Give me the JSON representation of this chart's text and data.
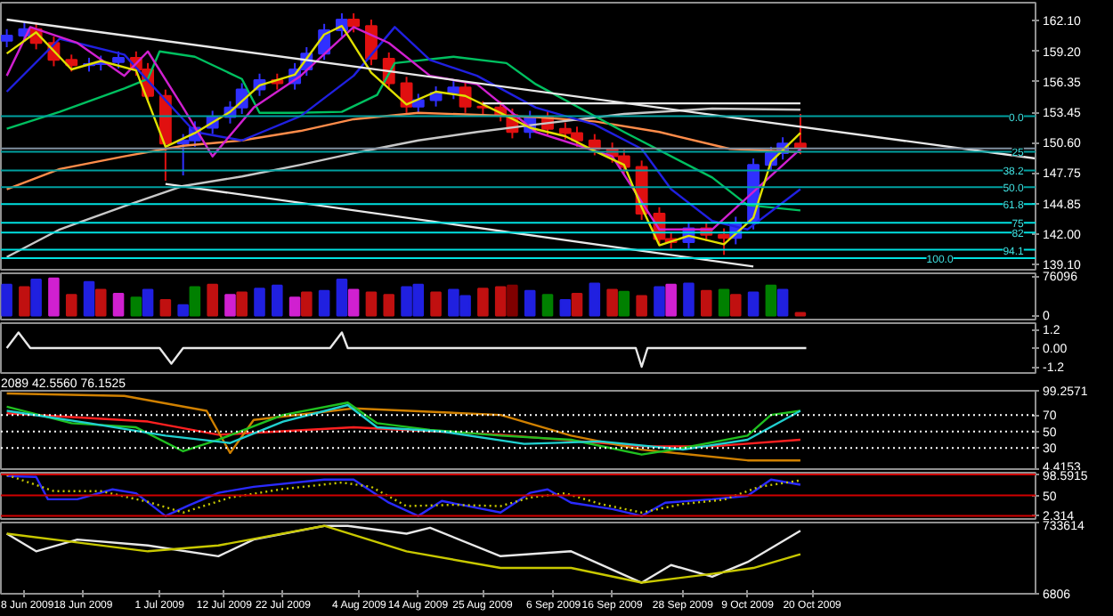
{
  "chart_data": [
    {
      "type": "candlestick",
      "tick_labels": "y",
      "xlim": [
        "2009-06-04",
        "2009-11-27"
      ],
      "ylim": [
        138.6,
        163.8
      ],
      "yticks": [
        {
          "value": 162.1,
          "label": "162.10"
        },
        {
          "value": 159.2,
          "label": "159.20"
        },
        {
          "value": 156.35,
          "label": "156.35"
        },
        {
          "value": 153.45,
          "label": "153.45"
        },
        {
          "value": 150.6,
          "label": "150.60"
        },
        {
          "value": 147.75,
          "label": "147.75"
        },
        {
          "value": 144.85,
          "label": "144.85"
        },
        {
          "value": 142.0,
          "label": "142.00"
        },
        {
          "value": 139.1,
          "label": "139.10"
        }
      ],
      "x": [
        "2009-06-05",
        "2009-06-08",
        "2009-06-10",
        "2009-06-13",
        "2009-06-16",
        "2009-06-19",
        "2009-06-21",
        "2009-06-24",
        "2009-06-27",
        "2009-06-29",
        "2009-07-02",
        "2009-07-05",
        "2009-07-07",
        "2009-07-10",
        "2009-07-13",
        "2009-07-15",
        "2009-07-18",
        "2009-07-21",
        "2009-07-24",
        "2009-07-26",
        "2009-07-29",
        "2009-08-01",
        "2009-08-03",
        "2009-08-06",
        "2009-08-09",
        "2009-08-12",
        "2009-08-14",
        "2009-08-17",
        "2009-08-20",
        "2009-08-22",
        "2009-08-25",
        "2009-08-28",
        "2009-08-30",
        "2009-09-02",
        "2009-09-05",
        "2009-09-08",
        "2009-09-10",
        "2009-09-13",
        "2009-09-16",
        "2009-09-18",
        "2009-09-21",
        "2009-09-24",
        "2009-09-26",
        "2009-09-29",
        "2009-10-02",
        "2009-10-05",
        "2009-10-07",
        "2009-10-10",
        "2009-10-13",
        "2009-10-15",
        "2009-10-18"
      ],
      "ohlc": [
        [
          160.2,
          161.3,
          159.6,
          160.7
        ],
        [
          160.7,
          162.0,
          160.1,
          161.3
        ],
        [
          161.3,
          161.9,
          159.4,
          160.0
        ],
        [
          160.0,
          160.6,
          157.8,
          158.4
        ],
        [
          158.4,
          158.9,
          157.3,
          157.9
        ],
        [
          157.9,
          158.6,
          157.3,
          158.0
        ],
        [
          158.0,
          158.8,
          157.4,
          158.2
        ],
        [
          158.2,
          159.2,
          157.6,
          158.6
        ],
        [
          158.6,
          159.2,
          156.9,
          157.5
        ],
        [
          157.5,
          158.1,
          154.4,
          155.0
        ],
        [
          155.0,
          155.6,
          147.0,
          150.5
        ],
        [
          150.5,
          151.4,
          147.5,
          150.8
        ],
        [
          150.8,
          152.6,
          150.2,
          152.0
        ],
        [
          152.0,
          153.6,
          151.4,
          153.0
        ],
        [
          153.0,
          154.5,
          152.4,
          153.9
        ],
        [
          153.9,
          156.2,
          153.3,
          155.6
        ],
        [
          155.6,
          157.1,
          155.0,
          156.5
        ],
        [
          156.5,
          157.1,
          155.6,
          156.2
        ],
        [
          156.2,
          158.1,
          155.6,
          157.5
        ],
        [
          157.5,
          159.6,
          156.9,
          159.0
        ],
        [
          159.0,
          161.8,
          158.4,
          161.2
        ],
        [
          161.2,
          162.8,
          160.6,
          162.2
        ],
        [
          162.2,
          162.8,
          161.0,
          161.6
        ],
        [
          161.6,
          162.2,
          157.9,
          158.5
        ],
        [
          158.5,
          159.1,
          155.6,
          156.2
        ],
        [
          156.2,
          156.8,
          153.4,
          154.0
        ],
        [
          154.0,
          155.2,
          153.4,
          154.6
        ],
        [
          154.6,
          155.9,
          154.0,
          155.3
        ],
        [
          155.3,
          156.4,
          154.7,
          155.8
        ],
        [
          155.8,
          156.4,
          153.4,
          154.0
        ],
        [
          154.0,
          154.5,
          153.3,
          153.9
        ],
        [
          153.9,
          154.5,
          152.6,
          153.2
        ],
        [
          153.2,
          153.8,
          151.0,
          151.6
        ],
        [
          151.6,
          153.6,
          151.0,
          153.0
        ],
        [
          153.0,
          153.6,
          151.3,
          151.9
        ],
        [
          151.9,
          152.5,
          150.9,
          151.5
        ],
        [
          151.5,
          152.1,
          150.2,
          150.8
        ],
        [
          150.8,
          151.4,
          149.4,
          150.0
        ],
        [
          150.0,
          150.6,
          148.7,
          149.3
        ],
        [
          149.3,
          149.9,
          147.7,
          148.3
        ],
        [
          148.3,
          148.9,
          143.3,
          143.9
        ],
        [
          143.9,
          144.5,
          140.9,
          141.5
        ],
        [
          141.5,
          142.1,
          140.6,
          141.2
        ],
        [
          141.2,
          143.1,
          140.6,
          142.5
        ],
        [
          142.5,
          143.1,
          141.3,
          141.9
        ],
        [
          141.9,
          142.5,
          140.0,
          141.6
        ],
        [
          141.6,
          143.6,
          141.0,
          143.0
        ],
        [
          143.0,
          149.1,
          142.4,
          148.5
        ],
        [
          148.5,
          150.2,
          147.9,
          149.6
        ],
        [
          149.6,
          151.1,
          149.0,
          150.5
        ],
        [
          150.5,
          153.3,
          149.5,
          150.1
        ]
      ],
      "series": [
        {
          "type": "line",
          "color": "#ff8c4a",
          "x": [
            "2009-06-05",
            "2009-06-14",
            "2009-06-25",
            "2009-07-05",
            "2009-07-15",
            "2009-07-25",
            "2009-08-03",
            "2009-08-14",
            "2009-08-25",
            "2009-09-03",
            "2009-09-13",
            "2009-09-24",
            "2009-10-06",
            "2009-10-18"
          ],
          "values": [
            146.2,
            148.1,
            149.3,
            150.3,
            150.8,
            151.7,
            152.8,
            153.4,
            153.2,
            153.0,
            152.6,
            151.6,
            150.0,
            149.7
          ]
        },
        {
          "type": "line",
          "color": "#c8c8c8",
          "x": [
            "2009-06-05",
            "2009-06-14",
            "2009-06-25",
            "2009-07-05",
            "2009-07-15",
            "2009-07-25",
            "2009-08-03",
            "2009-08-14",
            "2009-08-24",
            "2009-09-03",
            "2009-09-18",
            "2009-10-03",
            "2009-10-18"
          ],
          "values": [
            139.8,
            142.4,
            144.6,
            146.5,
            147.4,
            148.5,
            149.6,
            150.8,
            151.6,
            152.3,
            153.3,
            153.8,
            153.7
          ]
        },
        {
          "type": "line",
          "color": "#00c060",
          "x": [
            "2009-06-05",
            "2009-06-14",
            "2009-06-25",
            "2009-06-29",
            "2009-07-01",
            "2009-07-07",
            "2009-07-15",
            "2009-07-18",
            "2009-07-24",
            "2009-08-01",
            "2009-08-07",
            "2009-08-10",
            "2009-08-20",
            "2009-08-29",
            "2009-09-03",
            "2009-09-18",
            "2009-10-03",
            "2009-10-09",
            "2009-10-18"
          ],
          "values": [
            151.9,
            153.5,
            155.7,
            156.6,
            159.2,
            158.7,
            156.6,
            153.4,
            153.4,
            153.5,
            155.1,
            158.1,
            158.7,
            158.1,
            156.1,
            151.6,
            147.3,
            144.7,
            144.2
          ]
        },
        {
          "type": "line",
          "color": "#2020e0",
          "x": [
            "2009-06-05",
            "2009-06-14",
            "2009-06-25",
            "2009-07-02",
            "2009-07-07",
            "2009-07-15",
            "2009-07-25",
            "2009-08-03",
            "2009-08-10",
            "2009-08-16",
            "2009-08-24",
            "2009-09-03",
            "2009-09-13",
            "2009-09-21",
            "2009-09-26",
            "2009-10-03",
            "2009-10-09",
            "2009-10-18"
          ],
          "values": [
            155.4,
            160.4,
            158.9,
            154.6,
            151.6,
            150.8,
            153.1,
            156.9,
            161.5,
            158.4,
            156.9,
            153.9,
            152.3,
            150.0,
            146.2,
            143.2,
            142.4,
            146.2
          ]
        },
        {
          "type": "line",
          "color": "#d020d0",
          "x": [
            "2009-06-05",
            "2009-06-09",
            "2009-06-17",
            "2009-06-25",
            "2009-06-29",
            "2009-07-05",
            "2009-07-10",
            "2009-07-17",
            "2009-07-25",
            "2009-08-03",
            "2009-08-09",
            "2009-08-16",
            "2009-08-24",
            "2009-09-03",
            "2009-09-16",
            "2009-09-24",
            "2009-10-03",
            "2009-10-18"
          ],
          "values": [
            156.9,
            161.5,
            160.0,
            156.9,
            159.2,
            153.9,
            149.3,
            153.9,
            156.9,
            161.5,
            160.0,
            156.9,
            156.1,
            151.6,
            149.3,
            142.4,
            142.4,
            150.0
          ]
        },
        {
          "type": "line",
          "color": "#e0e000",
          "x": [
            "2009-06-05",
            "2009-06-10",
            "2009-06-16",
            "2009-06-21",
            "2009-06-27",
            "2009-07-02",
            "2009-07-07",
            "2009-07-13",
            "2009-07-18",
            "2009-07-24",
            "2009-07-29",
            "2009-08-01",
            "2009-08-06",
            "2009-08-12",
            "2009-08-17",
            "2009-08-22",
            "2009-08-28",
            "2009-09-02",
            "2009-09-08",
            "2009-09-13",
            "2009-09-18",
            "2009-09-21",
            "2009-09-24",
            "2009-09-29",
            "2009-10-05",
            "2009-10-10",
            "2009-10-13",
            "2009-10-18"
          ],
          "values": [
            159.0,
            161.0,
            157.5,
            158.3,
            157.4,
            150.2,
            151.5,
            153.5,
            156.0,
            157.0,
            160.8,
            161.6,
            157.2,
            154.2,
            155.4,
            155.0,
            153.4,
            152.0,
            151.2,
            149.8,
            148.5,
            144.5,
            140.9,
            141.8,
            141.0,
            143.5,
            148.8,
            151.5
          ]
        },
        {
          "type": "line",
          "color": "#e8e8e8",
          "x": [
            "2009-06-05",
            "2009-11-27"
          ],
          "values": [
            162.2,
            149.1
          ]
        },
        {
          "type": "line",
          "color": "#e8e8e8",
          "x": [
            "2009-07-02",
            "2009-10-10"
          ],
          "values": [
            146.7,
            138.9
          ]
        },
        {
          "type": "line",
          "color": "#e8e8e8",
          "x": [
            "2009-08-25",
            "2009-10-18"
          ],
          "values": [
            154.3,
            154.3
          ]
        }
      ],
      "ref_lines": [
        {
          "axis": "y",
          "value": 150.04,
          "label": null,
          "color": "#8090a0"
        },
        {
          "axis": "y",
          "value": 153.09,
          "label": null,
          "color": "#00a0a0"
        },
        {
          "axis": "y",
          "value": 149.74,
          "label": null,
          "color": "#00a0a0"
        },
        {
          "axis": "y",
          "value": 147.97,
          "label": null,
          "color": "#00a0a0"
        },
        {
          "axis": "y",
          "value": 146.4,
          "label": null,
          "color": "#00a0a0"
        },
        {
          "axis": "y",
          "value": 144.8,
          "label": null,
          "color": "#00e0e0"
        },
        {
          "axis": "y",
          "value": 143.04,
          "label": null,
          "color": "#00e0e0"
        },
        {
          "axis": "y",
          "value": 142.1,
          "label": null,
          "color": "#00e0e0"
        },
        {
          "axis": "y",
          "value": 140.48,
          "label": null,
          "color": "#00e0e0"
        },
        {
          "axis": "y",
          "value": 139.7,
          "label": null,
          "color": "#00e0e0"
        }
      ],
      "annotations": [
        {
          "text": "0.0",
          "x": "2009-11-25",
          "y": 153.09
        },
        {
          "text": "25",
          "x": "2009-11-25",
          "y": 149.74
        },
        {
          "text": "38.2",
          "x": "2009-11-25",
          "y": 147.97
        },
        {
          "text": "50.0",
          "x": "2009-11-25",
          "y": 146.4
        },
        {
          "text": "61.8",
          "x": "2009-11-25",
          "y": 144.8
        },
        {
          "text": "75",
          "x": "2009-11-25",
          "y": 143.04
        },
        {
          "text": "82",
          "x": "2009-11-25",
          "y": 142.1
        },
        {
          "text": "94.1",
          "x": "2009-11-25",
          "y": 140.48
        },
        {
          "text": "100.0",
          "x": "2009-11-13",
          "y": 139.7
        }
      ]
    },
    {
      "type": "bar",
      "tick_labels": "y",
      "xlim": [
        "2009-06-04",
        "2009-11-27"
      ],
      "ylim": [
        -8000,
        82000
      ],
      "yticks": [
        76096,
        0
      ],
      "x": [
        "2009-06-05",
        "2009-06-08",
        "2009-06-10",
        "2009-06-13",
        "2009-06-16",
        "2009-06-19",
        "2009-06-21",
        "2009-06-24",
        "2009-06-27",
        "2009-06-29",
        "2009-07-02",
        "2009-07-05",
        "2009-07-07",
        "2009-07-10",
        "2009-07-13",
        "2009-07-15",
        "2009-07-18",
        "2009-07-21",
        "2009-07-24",
        "2009-07-26",
        "2009-07-29",
        "2009-08-01",
        "2009-08-03",
        "2009-08-06",
        "2009-08-09",
        "2009-08-12",
        "2009-08-14",
        "2009-08-17",
        "2009-08-20",
        "2009-08-22",
        "2009-08-25",
        "2009-08-28",
        "2009-08-30",
        "2009-09-02",
        "2009-09-05",
        "2009-09-08",
        "2009-09-10",
        "2009-09-13",
        "2009-09-16",
        "2009-09-18",
        "2009-09-21",
        "2009-09-24",
        "2009-09-26",
        "2009-09-29",
        "2009-10-02",
        "2009-10-05",
        "2009-10-07",
        "2009-10-10",
        "2009-10-13",
        "2009-10-15",
        "2009-10-18"
      ],
      "values": [
        60000,
        55000,
        70000,
        72000,
        40000,
        65000,
        50000,
        42000,
        35000,
        50000,
        30000,
        20000,
        55000,
        60000,
        40000,
        45000,
        52000,
        58000,
        35000,
        45000,
        48000,
        70000,
        50000,
        45000,
        40000,
        55000,
        60000,
        45000,
        50000,
        38000,
        52000,
        55000,
        58000,
        48000,
        40000,
        30000,
        42000,
        62000,
        50000,
        46000,
        38000,
        55000,
        60000,
        62000,
        48000,
        50000,
        40000,
        45000,
        58000,
        50000,
        5000
      ],
      "colors": [
        "#2020e0",
        "#c01010",
        "#2020e0",
        "#d020d0",
        "#c01010",
        "#2020e0",
        "#c01010",
        "#d020d0",
        "#008000",
        "#2020e0",
        "#c01010",
        "#2020e0",
        "#008000",
        "#c01010",
        "#d020d0",
        "#c01010",
        "#2020e0",
        "#2020e0",
        "#d020d0",
        "#c01010",
        "#2020e0",
        "#2020e0",
        "#d020d0",
        "#c01010",
        "#c01010",
        "#2020e0",
        "#2020e0",
        "#c01010",
        "#2020e0",
        "#2020e0",
        "#c01010",
        "#c01010",
        "#800000",
        "#2020e0",
        "#008000",
        "#2020e0",
        "#c01010",
        "#2020e0",
        "#c01010",
        "#008000",
        "#c01010",
        "#2020e0",
        "#d020d0",
        "#2020e0",
        "#c01010",
        "#008000",
        "#c01010",
        "#2020e0",
        "#008000",
        "#2020e0",
        "#c01010"
      ]
    },
    {
      "type": "line",
      "tick_labels": "y",
      "xlim": [
        "2009-06-04",
        "2009-11-27"
      ],
      "ylim": [
        -1.6,
        1.6
      ],
      "yticks": [
        1.2,
        {
          "value": 0,
          "label": "0.00"
        },
        -1.2
      ],
      "series": [
        {
          "color": "#e8e8e8",
          "x": [
            "2009-06-05",
            "2009-06-07",
            "2009-06-09",
            "2009-07-01",
            "2009-07-03",
            "2009-07-05",
            "2009-07-30",
            "2009-08-01",
            "2009-08-02",
            "2009-09-20",
            "2009-09-21",
            "2009-09-22",
            "2009-10-19"
          ],
          "values": [
            0,
            1.0,
            0,
            0,
            -1.0,
            0,
            0,
            1.0,
            0,
            0,
            -1.2,
            0,
            0
          ]
        }
      ]
    },
    {
      "type": "line",
      "title": "2089 42.5560 76.1525",
      "tick_labels": "y",
      "xlim": [
        "2009-06-04",
        "2009-11-27"
      ],
      "ylim": [
        4.4153,
        99.2571
      ],
      "yticks": [
        99.2571,
        70,
        50,
        30,
        4.4153
      ],
      "ref_lines": [
        {
          "axis": "y",
          "value": 70,
          "label": null,
          "color": "#ffffff",
          "line_style": "dotted"
        },
        {
          "axis": "y",
          "value": 50,
          "label": null,
          "color": "#ffffff",
          "line_style": "dotted"
        },
        {
          "axis": "y",
          "value": 30,
          "label": null,
          "color": "#ffffff",
          "line_style": "dotted"
        }
      ],
      "series": [
        {
          "color": "#ff2020",
          "x": [
            "2009-06-05",
            "2009-06-29",
            "2009-07-11",
            "2009-08-03",
            "2009-08-28",
            "2009-09-21",
            "2009-10-03",
            "2009-10-18"
          ],
          "values": [
            72,
            62,
            46,
            55,
            46,
            32,
            32,
            40
          ]
        },
        {
          "color": "#d08000",
          "x": [
            "2009-06-05",
            "2009-06-25",
            "2009-07-09",
            "2009-07-13",
            "2009-07-17",
            "2009-08-03",
            "2009-08-28",
            "2009-09-09",
            "2009-09-21",
            "2009-10-09",
            "2009-10-18"
          ],
          "values": [
            96,
            93,
            75,
            24,
            64,
            78,
            70,
            45,
            28,
            15,
            15
          ]
        },
        {
          "color": "#20c020",
          "x": [
            "2009-06-05",
            "2009-06-16",
            "2009-06-27",
            "2009-07-05",
            "2009-07-11",
            "2009-07-22",
            "2009-08-02",
            "2009-08-07",
            "2009-08-16",
            "2009-08-28",
            "2009-09-09",
            "2009-09-21",
            "2009-09-28",
            "2009-10-09",
            "2009-10-13",
            "2009-10-18"
          ],
          "values": [
            80,
            60,
            55,
            26,
            40,
            70,
            85,
            60,
            52,
            45,
            40,
            22,
            30,
            45,
            70,
            75
          ]
        },
        {
          "color": "#20d0d0",
          "x": [
            "2009-06-05",
            "2009-06-19",
            "2009-07-02",
            "2009-07-13",
            "2009-07-22",
            "2009-08-02",
            "2009-08-07",
            "2009-08-18",
            "2009-09-01",
            "2009-09-14",
            "2009-09-28",
            "2009-10-09",
            "2009-10-18"
          ],
          "values": [
            75,
            60,
            45,
            36,
            62,
            82,
            55,
            50,
            35,
            38,
            28,
            40,
            75
          ]
        }
      ]
    },
    {
      "type": "line",
      "tick_labels": "y",
      "xlim": [
        "2009-06-04",
        "2009-11-27"
      ],
      "ylim": [
        -5,
        103
      ],
      "yticks": [
        98.5915,
        50,
        2.314
      ],
      "ref_lines": [
        {
          "axis": "y",
          "value": 98.5915,
          "label": null,
          "color": "#d00000"
        },
        {
          "axis": "y",
          "value": 50,
          "label": null,
          "color": "#d00000"
        },
        {
          "axis": "y",
          "value": 2.314,
          "label": null,
          "color": "#d00000"
        }
      ],
      "series": [
        {
          "color": "#2a2aff",
          "x": [
            "2009-06-05",
            "2009-06-10",
            "2009-06-12",
            "2009-06-17",
            "2009-06-23",
            "2009-06-27",
            "2009-07-02",
            "2009-07-06",
            "2009-07-11",
            "2009-07-17",
            "2009-07-29",
            "2009-08-03",
            "2009-08-09",
            "2009-08-14",
            "2009-08-18",
            "2009-08-28",
            "2009-09-02",
            "2009-09-05",
            "2009-09-09",
            "2009-09-16",
            "2009-09-21",
            "2009-09-25",
            "2009-10-03",
            "2009-10-09",
            "2009-10-13",
            "2009-10-18"
          ],
          "values": [
            95,
            93,
            41,
            41,
            64,
            55,
            2,
            27,
            56,
            70,
            87,
            87,
            33,
            2,
            37,
            10,
            56,
            64,
            33,
            18,
            2,
            33,
            41,
            49,
            87,
            75
          ]
        },
        {
          "color": "#c8c800",
          "line_style": "dotted",
          "x": [
            "2009-06-05",
            "2009-06-13",
            "2009-06-21",
            "2009-06-29",
            "2009-07-05",
            "2009-07-13",
            "2009-07-22",
            "2009-08-01",
            "2009-08-06",
            "2009-08-12",
            "2009-08-20",
            "2009-08-28",
            "2009-09-02",
            "2009-09-08",
            "2009-09-14",
            "2009-09-21",
            "2009-09-28",
            "2009-10-05",
            "2009-10-11",
            "2009-10-18"
          ],
          "values": [
            98,
            60,
            60,
            35,
            10,
            45,
            65,
            80,
            70,
            25,
            28,
            25,
            45,
            55,
            30,
            10,
            30,
            40,
            70,
            85
          ]
        }
      ]
    },
    {
      "type": "line",
      "xlim": [
        "2009-06-04",
        "2009-11-27"
      ],
      "ylim": [
        6806,
        733614
      ],
      "yticks": [
        733614,
        6806
      ],
      "xticks": [
        {
          "value": "2009-06-08",
          "label": "8 Jun 2009"
        },
        {
          "value": "2009-06-18",
          "label": "18 Jun 2009"
        },
        {
          "value": "2009-07-01",
          "label": "1 Jul 2009"
        },
        {
          "value": "2009-07-12",
          "label": "12 Jul 2009"
        },
        {
          "value": "2009-07-22",
          "label": "22 Jul 2009"
        },
        {
          "value": "2009-08-04",
          "label": "4 Aug 2009"
        },
        {
          "value": "2009-08-14",
          "label": "14 Aug 2009"
        },
        {
          "value": "2009-08-25",
          "label": "25 Aug 2009"
        },
        {
          "value": "2009-09-06",
          "label": "6 Sep 2009"
        },
        {
          "value": "2009-09-16",
          "label": "16 Sep 2009"
        },
        {
          "value": "2009-09-28",
          "label": "28 Sep 2009"
        },
        {
          "value": "2009-10-09",
          "label": "9 Oct 2009"
        },
        {
          "value": "2009-10-20",
          "label": "20 Oct 2009"
        }
      ],
      "series": [
        {
          "color": "#e8e8e8",
          "x": [
            "2009-06-05",
            "2009-06-10",
            "2009-06-17",
            "2009-06-29",
            "2009-07-11",
            "2009-07-17",
            "2009-07-29",
            "2009-08-02",
            "2009-08-12",
            "2009-08-16",
            "2009-08-28",
            "2009-09-09",
            "2009-09-21",
            "2009-09-26",
            "2009-10-03",
            "2009-10-09",
            "2009-10-18"
          ],
          "values": [
            620000,
            440000,
            560000,
            500000,
            390000,
            560000,
            700000,
            700000,
            620000,
            680000,
            390000,
            440000,
            120000,
            300000,
            180000,
            330000,
            650000
          ]
        },
        {
          "color": "#c8c800",
          "x": [
            "2009-06-05",
            "2009-06-17",
            "2009-06-29",
            "2009-07-11",
            "2009-07-29",
            "2009-08-12",
            "2009-08-28",
            "2009-09-09",
            "2009-09-21",
            "2009-10-03",
            "2009-10-10",
            "2009-10-18"
          ],
          "values": [
            620000,
            530000,
            440000,
            500000,
            700000,
            440000,
            270000,
            270000,
            120000,
            210000,
            270000,
            410000
          ]
        }
      ]
    }
  ]
}
